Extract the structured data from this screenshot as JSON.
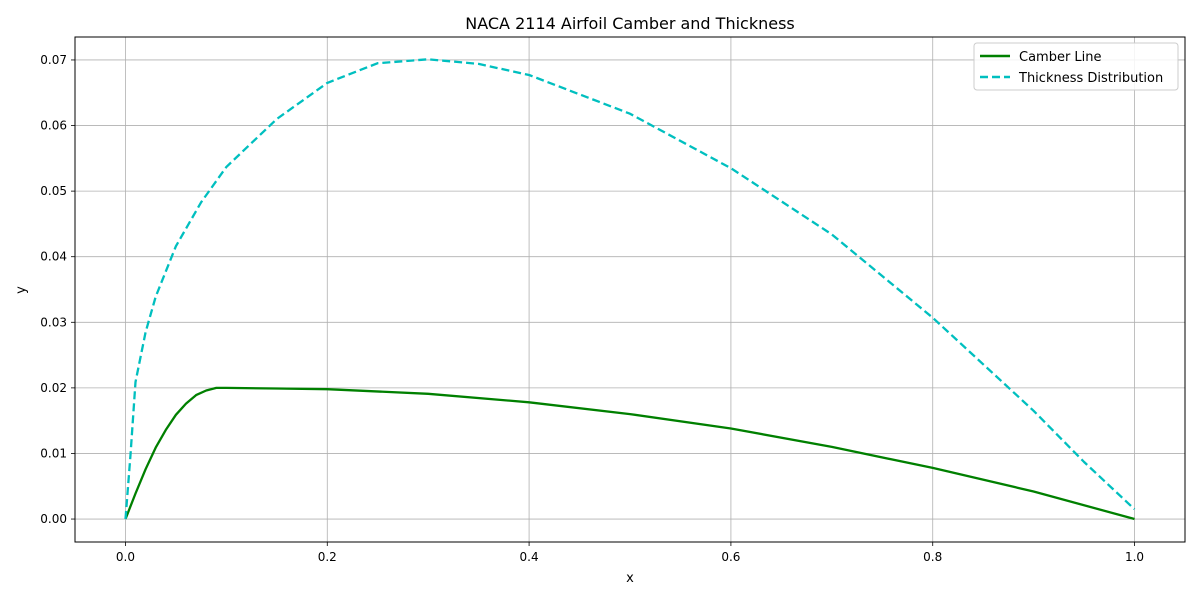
{
  "chart_data": {
    "type": "line",
    "title": "NACA 2114 Airfoil Camber and Thickness",
    "xlabel": "x",
    "ylabel": "y",
    "xlim": [
      -0.05,
      1.05
    ],
    "ylim": [
      -0.0035,
      0.0735
    ],
    "xticks": [
      "0.0",
      "0.2",
      "0.4",
      "0.6",
      "0.8",
      "1.0"
    ],
    "yticks": [
      "0.00",
      "0.01",
      "0.02",
      "0.03",
      "0.04",
      "0.05",
      "0.06",
      "0.07"
    ],
    "grid": true,
    "legend_position": "top-right",
    "series": [
      {
        "name": "Camber Line",
        "color": "#008000",
        "style": "solid",
        "x": [
          0.0,
          0.01,
          0.02,
          0.03,
          0.04,
          0.05,
          0.06,
          0.07,
          0.08,
          0.09,
          0.1,
          0.15,
          0.2,
          0.3,
          0.4,
          0.5,
          0.6,
          0.7,
          0.8,
          0.9,
          1.0
        ],
        "y": [
          0.0,
          0.0039,
          0.0076,
          0.0109,
          0.0136,
          0.0159,
          0.0176,
          0.0189,
          0.0196,
          0.02,
          0.02,
          0.0199,
          0.0198,
          0.0191,
          0.0178,
          0.016,
          0.0138,
          0.011,
          0.0078,
          0.0042,
          0.0
        ]
      },
      {
        "name": "Thickness Distribution",
        "color": "#00bfbf",
        "style": "dashed",
        "x": [
          0.0,
          0.005,
          0.01,
          0.02,
          0.03,
          0.05,
          0.075,
          0.1,
          0.15,
          0.2,
          0.25,
          0.3,
          0.35,
          0.4,
          0.5,
          0.6,
          0.7,
          0.8,
          0.9,
          0.95,
          1.0
        ],
        "y": [
          0.0,
          0.0098,
          0.0209,
          0.0285,
          0.0339,
          0.0416,
          0.0483,
          0.0537,
          0.061,
          0.0665,
          0.0695,
          0.0701,
          0.0694,
          0.0677,
          0.0618,
          0.0535,
          0.0434,
          0.0307,
          0.0165,
          0.0087,
          0.0015
        ]
      }
    ]
  }
}
